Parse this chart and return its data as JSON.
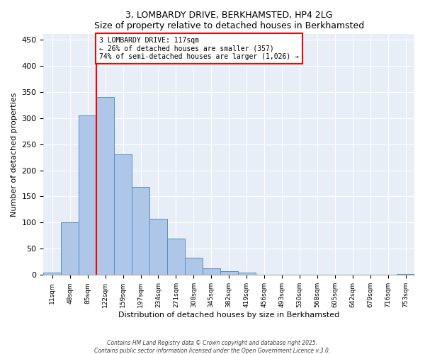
{
  "title1": "3, LOMBARDY DRIVE, BERKHAMSTED, HP4 2LG",
  "title2": "Size of property relative to detached houses in Berkhamsted",
  "xlabel": "Distribution of detached houses by size in Berkhamsted",
  "ylabel": "Number of detached properties",
  "bin_labels": [
    "11sqm",
    "48sqm",
    "85sqm",
    "122sqm",
    "159sqm",
    "197sqm",
    "234sqm",
    "271sqm",
    "308sqm",
    "345sqm",
    "382sqm",
    "419sqm",
    "456sqm",
    "493sqm",
    "530sqm",
    "568sqm",
    "605sqm",
    "642sqm",
    "679sqm",
    "716sqm",
    "753sqm"
  ],
  "bar_values": [
    4,
    100,
    305,
    340,
    230,
    168,
    107,
    69,
    33,
    13,
    7,
    5,
    1,
    1,
    1,
    1,
    1,
    1,
    1,
    1,
    2
  ],
  "bar_color": "#aec6e8",
  "bar_edge_color": "#5a8fc2",
  "property_line_index": 2.5,
  "property_line_color": "red",
  "annotation_text": "3 LOMBARDY DRIVE: 117sqm\n← 26% of detached houses are smaller (357)\n74% of semi-detached houses are larger (1,026) →",
  "annotation_box_color": "white",
  "annotation_box_edge": "red",
  "ylim": [
    0,
    460
  ],
  "yticks": [
    0,
    50,
    100,
    150,
    200,
    250,
    300,
    350,
    400,
    450
  ],
  "background_color": "#e8eef8",
  "grid_color": "white",
  "footer1": "Contains HM Land Registry data © Crown copyright and database right 2025.",
  "footer2": "Contains public sector information licensed under the Open Government Licence v.3.0."
}
